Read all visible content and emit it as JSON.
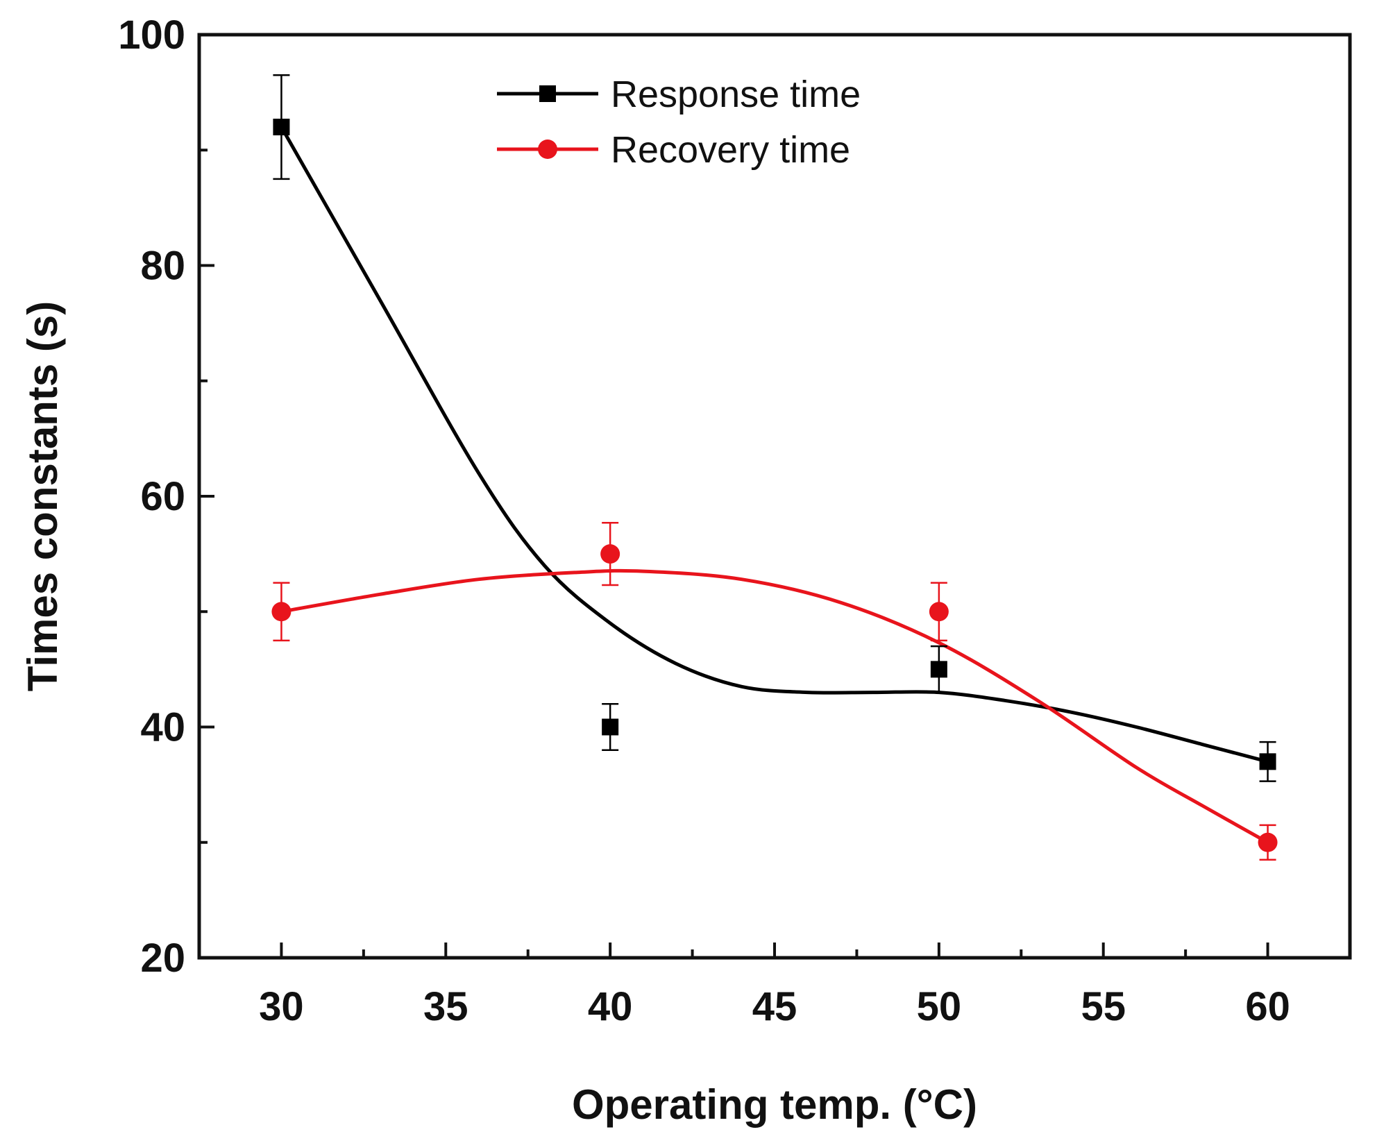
{
  "chart_data": {
    "type": "line",
    "title": "",
    "xlabel": "Operating temp. (°C)",
    "ylabel": "Times constants (s)",
    "xlim": [
      27.5,
      62.5
    ],
    "ylim": [
      20,
      100
    ],
    "xticks": [
      30,
      35,
      40,
      45,
      50,
      55,
      60
    ],
    "yticks": [
      20,
      40,
      60,
      80,
      100
    ],
    "legend_position": "top-center",
    "grid": false,
    "series": [
      {
        "name": "Response time",
        "color": "#000000",
        "marker": "square",
        "x": [
          30,
          40,
          50,
          60
        ],
        "y": [
          92,
          40,
          45,
          37
        ],
        "error": [
          4.5,
          2,
          2,
          1.7
        ],
        "fit_curve": {
          "x": [
            30,
            33,
            36,
            38,
            40,
            42,
            44,
            46,
            48,
            50,
            52,
            54,
            56,
            58,
            60
          ],
          "y": [
            92,
            77,
            62,
            54,
            49,
            45.5,
            43.5,
            43,
            43,
            43,
            42.3,
            41.3,
            40,
            38.5,
            37
          ]
        }
      },
      {
        "name": "Recovery time",
        "color": "#e8141c",
        "marker": "circle",
        "x": [
          30,
          40,
          50,
          60
        ],
        "y": [
          50,
          55,
          50,
          30
        ],
        "error": [
          2.5,
          2.7,
          2.5,
          1.5
        ],
        "fit_curve": {
          "x": [
            30,
            33,
            36,
            39,
            41,
            44,
            47,
            50,
            53,
            56,
            58,
            60
          ],
          "y": [
            50,
            51.5,
            52.8,
            53.4,
            53.5,
            52.8,
            50.8,
            47.3,
            42.3,
            36.5,
            33.2,
            30
          ]
        }
      }
    ]
  }
}
